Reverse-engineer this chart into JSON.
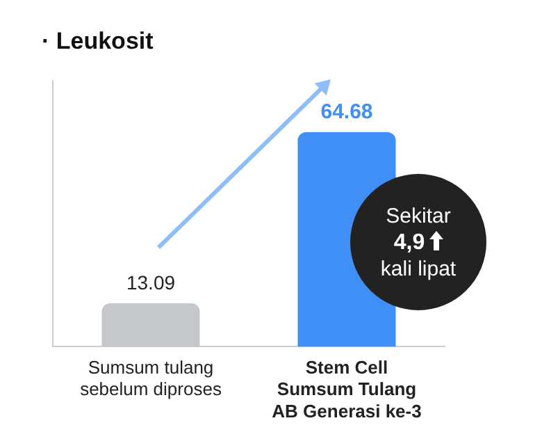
{
  "chart_data": {
    "type": "bar",
    "title": "· Leukosit",
    "categories": [
      "Sumsum tulang\nsebelum diproses",
      "Stem Cell\nSumsum Tulang\nAB Generasi ke-3"
    ],
    "values": [
      13.09,
      64.68
    ],
    "colors": [
      "#c4c7cc",
      "#3f8ff6"
    ],
    "data_labels": true,
    "grid": false,
    "legend": false,
    "annotations": [
      "Sekitar\n4,9\nkali lipat"
    ]
  }
}
